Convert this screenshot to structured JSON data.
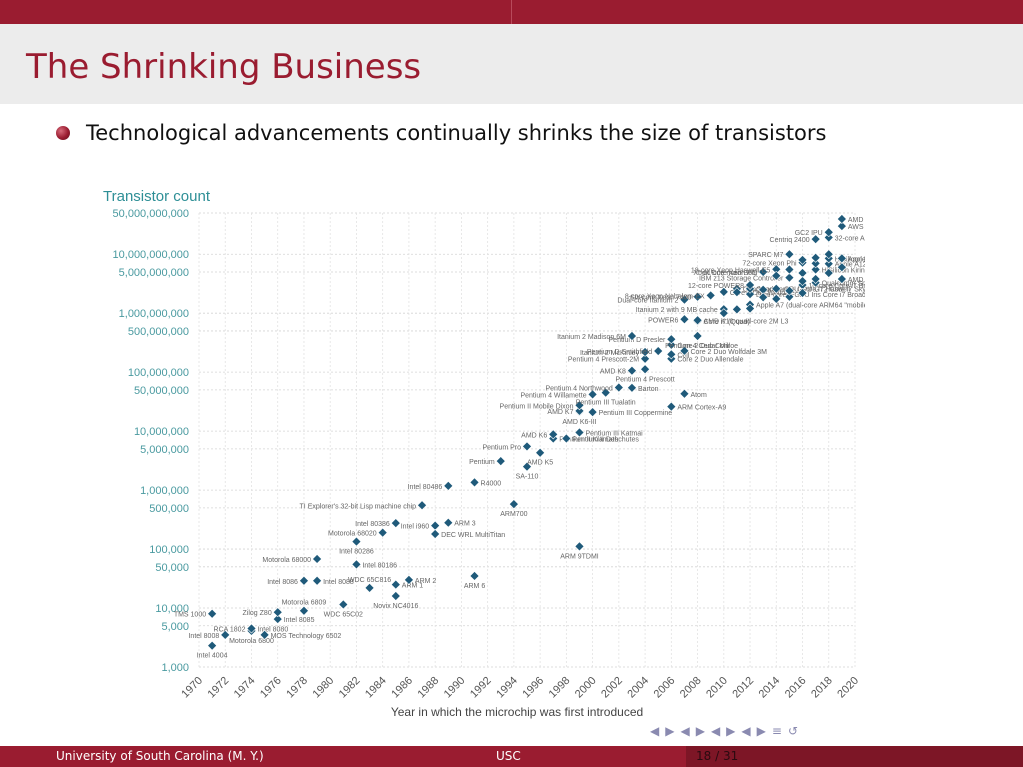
{
  "slide": {
    "title": "The Shrinking Business",
    "bullet": "Technological advancements continually shrinks the size of transistors"
  },
  "footer": {
    "left": "University of South Carolina  (M. Y.)",
    "center": "USC",
    "page": "18 / 31"
  },
  "nav": [
    "◀",
    "▶",
    "◀",
    "▶",
    "◀",
    "▶",
    "◀",
    "▶",
    "≡",
    "↺"
  ],
  "colors": {
    "accent": "#9a1c30",
    "marker": "#1f5a7a",
    "axis_text": "#4a9aa0"
  },
  "chart_data": {
    "type": "scatter",
    "title": "Transistor count",
    "xlabel": "Year in which the microchip was first introduced",
    "ylabel": "Transistor count",
    "yscale": "log",
    "xlim": [
      1970,
      2020
    ],
    "ylim": [
      1000,
      50000000000
    ],
    "xticks": [
      "1970",
      "1972",
      "1974",
      "1976",
      "1978",
      "1980",
      "1982",
      "1984",
      "1986",
      "1988",
      "1990",
      "1992",
      "1994",
      "1996",
      "1998",
      "2000",
      "2002",
      "2004",
      "2006",
      "2008",
      "2010",
      "2012",
      "2014",
      "2016",
      "2018",
      "2020"
    ],
    "yticks": [
      {
        "v": 1000,
        "label": "1,000"
      },
      {
        "v": 5000,
        "label": "5,000"
      },
      {
        "v": 10000,
        "label": "10,000"
      },
      {
        "v": 50000,
        "label": "50,000"
      },
      {
        "v": 100000,
        "label": "100,000"
      },
      {
        "v": 500000,
        "label": "500,000"
      },
      {
        "v": 1000000,
        "label": "1,000,000"
      },
      {
        "v": 5000000,
        "label": "5,000,000"
      },
      {
        "v": 10000000,
        "label": "10,000,000"
      },
      {
        "v": 50000000,
        "label": "50,000,000"
      },
      {
        "v": 100000000,
        "label": "100,000,000"
      },
      {
        "v": 500000000,
        "label": "500,000,000"
      },
      {
        "v": 1000000000,
        "label": "1,000,000,000"
      },
      {
        "v": 5000000000,
        "label": "5,000,000,000"
      },
      {
        "v": 10000000000,
        "label": "10,000,000,000"
      },
      {
        "v": 50000000000,
        "label": "50,000,000,000"
      }
    ],
    "grid": true,
    "points": [
      {
        "x": 1971,
        "y": 2300,
        "label": "Intel 4004",
        "pos": "below"
      },
      {
        "x": 1972,
        "y": 3500,
        "label": "Intel 8008",
        "pos": "left"
      },
      {
        "x": 1971,
        "y": 8000,
        "label": "TMS 1000",
        "pos": "left"
      },
      {
        "x": 1974,
        "y": 4100,
        "label": "Motorola 6800",
        "pos": "below"
      },
      {
        "x": 1974,
        "y": 4500,
        "label": "RCA 1802",
        "pos": "left"
      },
      {
        "x": 1974,
        "y": 4500,
        "label": "Intel 8080",
        "pos": "right"
      },
      {
        "x": 1975,
        "y": 3510,
        "label": "MOS Technology 6502",
        "pos": "right"
      },
      {
        "x": 1976,
        "y": 6500,
        "label": "Intel 8085",
        "pos": "right"
      },
      {
        "x": 1976,
        "y": 8500,
        "label": "Zilog Z80",
        "pos": "left"
      },
      {
        "x": 1978,
        "y": 9000,
        "label": "Motorola 6809",
        "pos": "above"
      },
      {
        "x": 1978,
        "y": 29000,
        "label": "Intel 8086",
        "pos": "left"
      },
      {
        "x": 1979,
        "y": 29000,
        "label": "Intel 8088",
        "pos": "right"
      },
      {
        "x": 1979,
        "y": 68000,
        "label": "Motorola 68000",
        "pos": "left"
      },
      {
        "x": 1981,
        "y": 11500,
        "label": "WDC 65C02",
        "pos": "below"
      },
      {
        "x": 1982,
        "y": 55000,
        "label": "Intel 80186",
        "pos": "right"
      },
      {
        "x": 1982,
        "y": 134000,
        "label": "Intel 80286",
        "pos": "below"
      },
      {
        "x": 1983,
        "y": 22000,
        "label": "WDC 65C816",
        "pos": "above"
      },
      {
        "x": 1984,
        "y": 190000,
        "label": "Motorola 68020",
        "pos": "left"
      },
      {
        "x": 1985,
        "y": 25000,
        "label": "ARM 1",
        "pos": "right"
      },
      {
        "x": 1985,
        "y": 275000,
        "label": "Intel 80386",
        "pos": "left"
      },
      {
        "x": 1985,
        "y": 16000,
        "label": "Novix NC4016",
        "pos": "below"
      },
      {
        "x": 1986,
        "y": 30000,
        "label": "ARM 2",
        "pos": "right"
      },
      {
        "x": 1987,
        "y": 553000,
        "label": "TI Explorer's 32-bit Lisp machine chip",
        "pos": "left"
      },
      {
        "x": 1988,
        "y": 250000,
        "label": "Intel i960",
        "pos": "left"
      },
      {
        "x": 1988,
        "y": 180000,
        "label": "DEC WRL MultiTitan",
        "pos": "right"
      },
      {
        "x": 1989,
        "y": 1180000,
        "label": "Intel 80486",
        "pos": "left"
      },
      {
        "x": 1989,
        "y": 280000,
        "label": "ARM 3",
        "pos": "right"
      },
      {
        "x": 1991,
        "y": 35000,
        "label": "ARM 6",
        "pos": "below"
      },
      {
        "x": 1991,
        "y": 1350000,
        "label": "R4000",
        "pos": "right"
      },
      {
        "x": 1993,
        "y": 3100000,
        "label": "Pentium",
        "pos": "left"
      },
      {
        "x": 1994,
        "y": 578977,
        "label": "ARM700",
        "pos": "below"
      },
      {
        "x": 1995,
        "y": 2500000,
        "label": "SA-110",
        "pos": "below"
      },
      {
        "x": 1995,
        "y": 5500000,
        "label": "Pentium Pro",
        "pos": "left"
      },
      {
        "x": 1996,
        "y": 4300000,
        "label": "AMD K5",
        "pos": "below"
      },
      {
        "x": 1997,
        "y": 7500000,
        "label": "Pentium II Klamath",
        "pos": "right"
      },
      {
        "x": 1997,
        "y": 8800000,
        "label": "AMD K6",
        "pos": "left"
      },
      {
        "x": 1998,
        "y": 7500000,
        "label": "Pentium II Deschutes",
        "pos": "right"
      },
      {
        "x": 1999,
        "y": 21300000,
        "label": "AMD K6-III",
        "pos": "below"
      },
      {
        "x": 1999,
        "y": 9500000,
        "label": "Pentium III Katmai",
        "pos": "right"
      },
      {
        "x": 1999,
        "y": 22000000,
        "label": "AMD K7",
        "pos": "left"
      },
      {
        "x": 1999,
        "y": 111000,
        "label": "ARM 9TDMI",
        "pos": "below"
      },
      {
        "x": 1999,
        "y": 27400000,
        "label": "Pentium II Mobile Dixon",
        "pos": "left"
      },
      {
        "x": 2000,
        "y": 21000000,
        "label": "Pentium III Coppermine",
        "pos": "right"
      },
      {
        "x": 2000,
        "y": 42000000,
        "label": "Pentium 4 Willamette",
        "pos": "left"
      },
      {
        "x": 2001,
        "y": 45000000,
        "label": "Pentium III Tualatin",
        "pos": "below"
      },
      {
        "x": 2002,
        "y": 55000000,
        "label": "Pentium 4 Northwood",
        "pos": "left"
      },
      {
        "x": 2003,
        "y": 54300000,
        "label": "Barton",
        "pos": "right"
      },
      {
        "x": 2003,
        "y": 105900000,
        "label": "AMD K8",
        "pos": "left"
      },
      {
        "x": 2004,
        "y": 112000000,
        "label": "Pentium 4 Prescott",
        "pos": "below"
      },
      {
        "x": 2004,
        "y": 169000000,
        "label": "Pentium 4 Prescott-2M",
        "pos": "left"
      },
      {
        "x": 2004,
        "y": 220000000,
        "label": "Itanium 2 McKinley",
        "pos": "left"
      },
      {
        "x": 2005,
        "y": 228000000,
        "label": "Pentium D Smithfield",
        "pos": "left"
      },
      {
        "x": 2006,
        "y": 169000000,
        "label": "Core 2 Duo Allendale",
        "pos": "right"
      },
      {
        "x": 2006,
        "y": 291000000,
        "label": "Core 2 Duo Conroe",
        "pos": "right"
      },
      {
        "x": 2006,
        "y": 362000000,
        "label": "Pentium D Presler",
        "pos": "left"
      },
      {
        "x": 2003,
        "y": 410000000,
        "label": "Itanium 2 Madison 6M",
        "pos": "left"
      },
      {
        "x": 2006,
        "y": 200000000,
        "label": "Cell",
        "pos": "right"
      },
      {
        "x": 2007,
        "y": 230000000,
        "label": "Core 2 Duo Wolfdale 3M",
        "pos": "right"
      },
      {
        "x": 2007,
        "y": 43000000,
        "label": "Atom",
        "pos": "right"
      },
      {
        "x": 2006,
        "y": 26000000,
        "label": "ARM Cortex-A9",
        "pos": "right"
      },
      {
        "x": 2008,
        "y": 410000000,
        "label": "Pentium 4 Cedar Mill",
        "pos": "below"
      },
      {
        "x": 2008,
        "y": 731000000,
        "label": "Core i7 (Quad)",
        "pos": "right"
      },
      {
        "x": 2008,
        "y": 758000000,
        "label": "AMD K10 quad-core 2M L3",
        "pos": "right"
      },
      {
        "x": 2007,
        "y": 1700000000,
        "label": "Dual-core Itanium 2",
        "pos": "left"
      },
      {
        "x": 2007,
        "y": 789000000,
        "label": "POWER6",
        "pos": "left"
      },
      {
        "x": 2008,
        "y": 1900000000,
        "label": "Six-core Xeon 7400",
        "pos": "left"
      },
      {
        "x": 2009,
        "y": 2000000000,
        "label": "8-core Xeon Nehalem-EX",
        "pos": "left"
      },
      {
        "x": 2010,
        "y": 1170000000,
        "label": "Itanium 2 with 9 MB cache",
        "pos": "left"
      },
      {
        "x": 2010,
        "y": 2300000000,
        "label": "Core 2 Duo Wolfdale",
        "pos": "right"
      },
      {
        "x": 2011,
        "y": 2600000000,
        "label": "Quad-core + GPU Core i7 Haswell",
        "pos": "right"
      },
      {
        "x": 2012,
        "y": 1400000000,
        "label": "Apple A7 (dual-core ARM64 \"mobile SoC\")",
        "pos": "right"
      },
      {
        "x": 2012,
        "y": 2100000000,
        "label": "Dual-core + GPU Iris Core i7 Broadwell-U",
        "pos": "right"
      },
      {
        "x": 2012,
        "y": 2600000000,
        "label": "Quad-core + GPU GT2 Core i7 Skylake K",
        "pos": "right"
      },
      {
        "x": 2012,
        "y": 3000000000,
        "label": "12-core POWER8",
        "pos": "left"
      },
      {
        "x": 2013,
        "y": 5000000000,
        "label": "61-core Xeon Phi",
        "pos": "left"
      },
      {
        "x": 2013,
        "y": 5000000000,
        "label": "Xbox One main SoC",
        "pos": "left"
      },
      {
        "x": 2014,
        "y": 5560000000,
        "label": "18-core Xeon Haswell-E5",
        "pos": "left"
      },
      {
        "x": 2015,
        "y": 4000000000,
        "label": "IBM z13 Storage Controller",
        "pos": "left"
      },
      {
        "x": 2015,
        "y": 10000000000,
        "label": "SPARC M7",
        "pos": "left"
      },
      {
        "x": 2016,
        "y": 7200000000,
        "label": "72-core Xeon Phi",
        "pos": "left"
      },
      {
        "x": 2017,
        "y": 18000000000,
        "label": "Centriq 2400",
        "pos": "left"
      },
      {
        "x": 2018,
        "y": 19200000000,
        "label": "32-core AMD Epyc",
        "pos": "right"
      },
      {
        "x": 2016,
        "y": 3000000000,
        "label": "10-core Core i7 Broadwell-E",
        "pos": "right"
      },
      {
        "x": 2017,
        "y": 3300000000,
        "label": "Qualcomm Snapdragon 835",
        "pos": "right"
      },
      {
        "x": 2018,
        "y": 6900000000,
        "label": "Apple A12X Bionic",
        "pos": "right"
      },
      {
        "x": 2018,
        "y": 8500000000,
        "label": "HiSilicon Kirin 990 5G",
        "pos": "right"
      },
      {
        "x": 2019,
        "y": 8500000000,
        "label": "Apple A13 (iPhone 11 Pro)",
        "pos": "right"
      },
      {
        "x": 2019,
        "y": 3800000000,
        "label": "AMD Ryzen 7 3700X",
        "pos": "right"
      },
      {
        "x": 2017,
        "y": 5500000000,
        "label": "HiSilicon Kirin 710",
        "pos": "right"
      },
      {
        "x": 2018,
        "y": 23600000000,
        "label": "GC2 IPU",
        "pos": "left"
      },
      {
        "x": 2019,
        "y": 30000000000,
        "label": "AWS Graviton2",
        "pos": "right"
      },
      {
        "x": 2019,
        "y": 39540000000,
        "label": "AMD Epyc Rome",
        "pos": "right"
      },
      {
        "x": 2010,
        "y": 1000000000,
        "label": "",
        "pos": "right"
      },
      {
        "x": 2011,
        "y": 1160000000,
        "label": "",
        "pos": "right"
      },
      {
        "x": 2011,
        "y": 2270000000,
        "label": "",
        "pos": "right"
      },
      {
        "x": 2012,
        "y": 1200000000,
        "label": "",
        "pos": "right"
      },
      {
        "x": 2013,
        "y": 2500000000,
        "label": "",
        "pos": "right"
      },
      {
        "x": 2013,
        "y": 1860000000,
        "label": "",
        "pos": "right"
      },
      {
        "x": 2014,
        "y": 2600000000,
        "label": "",
        "pos": "right"
      },
      {
        "x": 2014,
        "y": 4310000000,
        "label": "",
        "pos": "right"
      },
      {
        "x": 2014,
        "y": 1750000000,
        "label": "",
        "pos": "right"
      },
      {
        "x": 2015,
        "y": 1900000000,
        "label": "",
        "pos": "right"
      },
      {
        "x": 2015,
        "y": 5500000000,
        "label": "",
        "pos": "right"
      },
      {
        "x": 2016,
        "y": 4800000000,
        "label": "",
        "pos": "right"
      },
      {
        "x": 2016,
        "y": 8000000000,
        "label": "",
        "pos": "right"
      },
      {
        "x": 2017,
        "y": 7000000000,
        "label": "",
        "pos": "right"
      },
      {
        "x": 2017,
        "y": 8700000000,
        "label": "",
        "pos": "right"
      },
      {
        "x": 2018,
        "y": 4800000000,
        "label": "",
        "pos": "right"
      },
      {
        "x": 2018,
        "y": 10000000000,
        "label": "",
        "pos": "right"
      },
      {
        "x": 2019,
        "y": 6000000000,
        "label": "",
        "pos": "right"
      },
      {
        "x": 2016,
        "y": 3500000000,
        "label": "",
        "pos": "right"
      },
      {
        "x": 2017,
        "y": 3800000000,
        "label": "",
        "pos": "right"
      },
      {
        "x": 2015,
        "y": 2400000000,
        "label": "",
        "pos": "right"
      },
      {
        "x": 2016,
        "y": 2200000000,
        "label": "",
        "pos": "right"
      }
    ]
  }
}
